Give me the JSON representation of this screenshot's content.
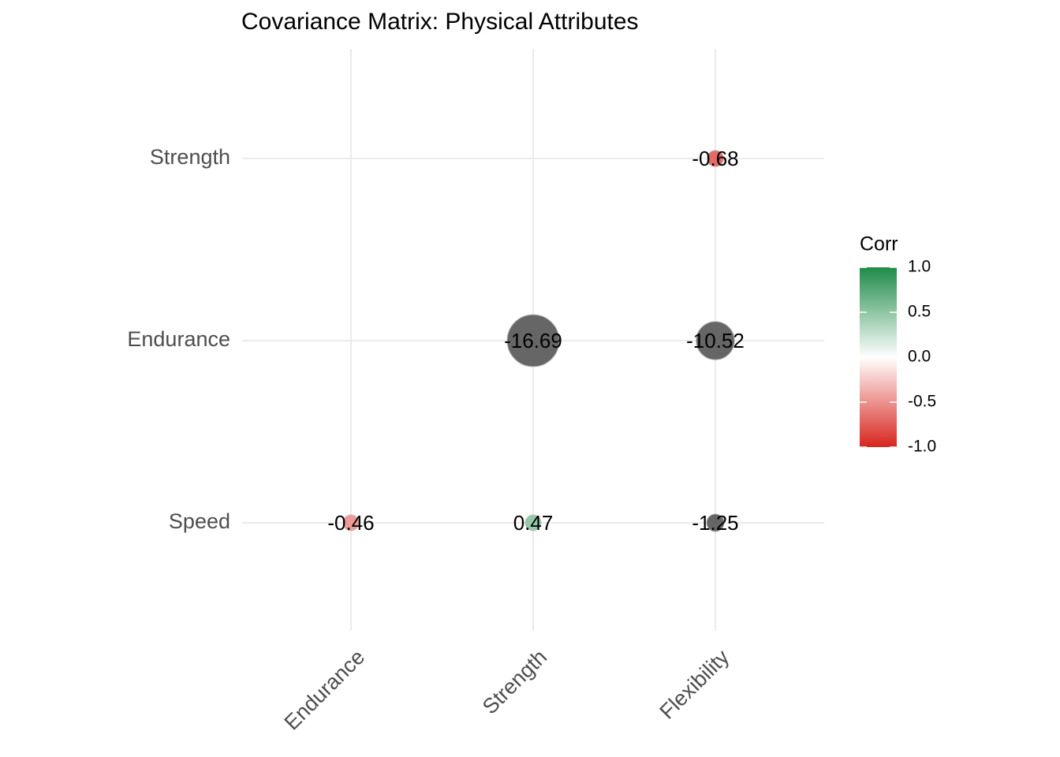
{
  "chart_data": {
    "type": "corrplot",
    "title": "Covariance Matrix: Physical Attributes",
    "x_categories": [
      "Endurance",
      "Strength",
      "Flexibility"
    ],
    "y_categories": [
      "Speed",
      "Endurance",
      "Strength"
    ],
    "values": [
      [
        -0.46,
        0.47,
        -1.25
      ],
      [
        null,
        -16.69,
        -10.52
      ],
      [
        null,
        null,
        -0.68
      ]
    ],
    "legend_title": "Corr",
    "clim": [
      -1,
      1
    ],
    "cticks": [
      {
        "value": -1,
        "label": "-1.0"
      },
      -0.5,
      {
        "value": 0,
        "label": "0.0"
      },
      0.5,
      {
        "value": 1,
        "label": "1.0"
      }
    ],
    "colors": [
      "#d7261e",
      "#ffffff",
      "#1e8b48"
    ],
    "na_color": "#666666",
    "grid": true
  }
}
